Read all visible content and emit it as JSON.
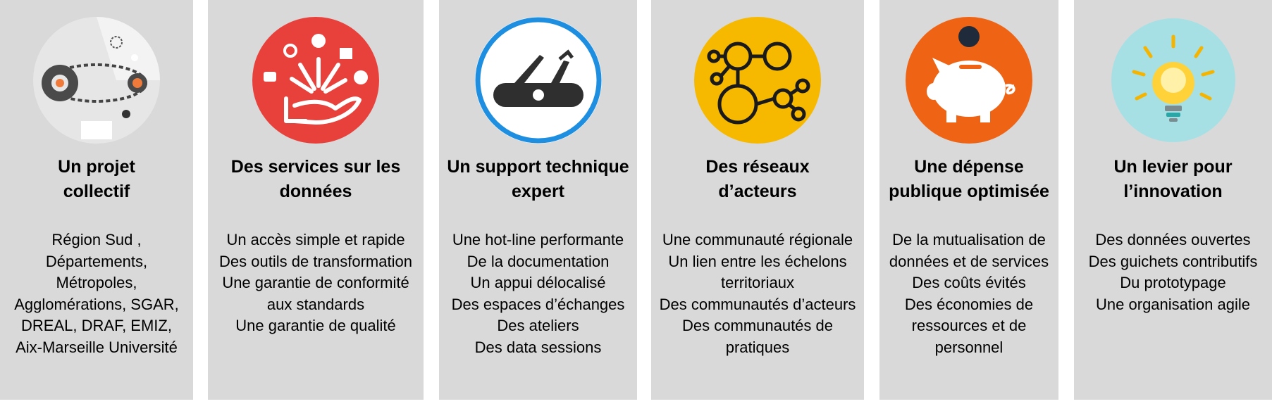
{
  "columns": [
    {
      "title": [
        "Un projet",
        "collectif"
      ],
      "lines": [
        "Région Sud   ,",
        "Départements,",
        "Métropoles,",
        "Agglomérations, SGAR,",
        "DREAL, DRAF, EMIZ,",
        "Aix-Marseille Université"
      ],
      "icon": "gears-icon",
      "color": "#e6e6e6"
    },
    {
      "title": [
        "Des services sur les",
        "données"
      ],
      "lines": [
        "Un accès simple et rapide",
        "Des outils de transformation",
        "Une garantie de conformité",
        "aux standards",
        "Une garantie de qualité"
      ],
      "icon": "hand-services-icon",
      "color": "#e8413c"
    },
    {
      "title": [
        "Un support technique",
        "expert"
      ],
      "lines": [
        "Une hot-line performante",
        "De la documentation",
        "Un appui délocalisé",
        "Des espaces d’échanges",
        "Des ateliers",
        "Des data sessions"
      ],
      "icon": "swiss-knife-icon",
      "color": "#1e8fe0"
    },
    {
      "title": [
        "Des réseaux",
        "d’acteurs"
      ],
      "lines": [
        "Une communauté régionale",
        "Un lien entre les échelons",
        "territoriaux",
        "Des communautés d’acteurs",
        "Des communautés de",
        "pratiques"
      ],
      "icon": "network-people-icon",
      "color": "#f6b900"
    },
    {
      "title": [
        "Une dépense",
        "publique optimisée"
      ],
      "lines": [
        "De la mutualisation de",
        "données et de services",
        "Des coûts évités",
        "Des économies de",
        "ressources et de",
        "personnel"
      ],
      "icon": "piggy-bank-icon",
      "color": "#ee6414"
    },
    {
      "title": [
        "Un levier pour",
        "l’innovation"
      ],
      "lines": [
        "Des données  ouvertes",
        "Des  guichets contributifs",
        "Du prototypage",
        "Une organisation agile"
      ],
      "icon": "lightbulb-icon",
      "color": "#a6e0e4"
    }
  ]
}
